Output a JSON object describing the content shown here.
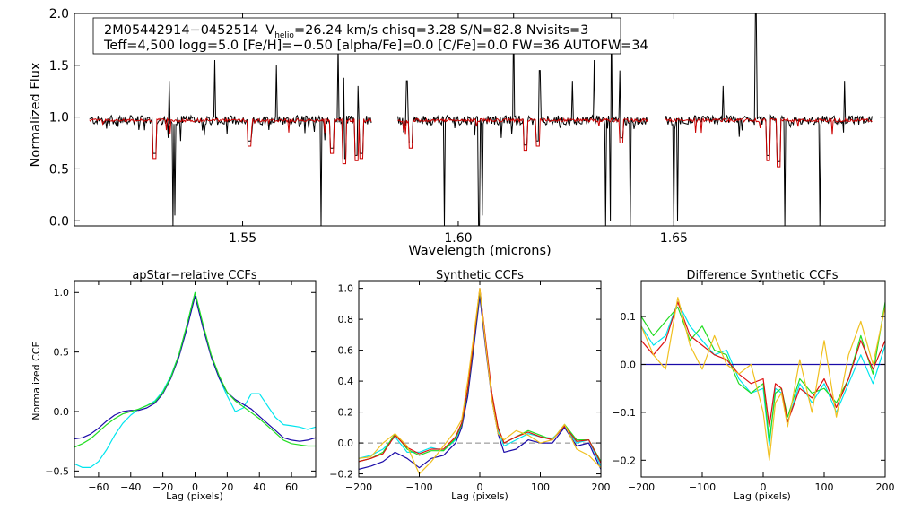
{
  "figure": {
    "star_id": "2M05442914−0452514",
    "vhelio_label": "V",
    "vhelio_sub": "helio",
    "info_line1_rest": "=26.24 km/s  chisq=3.28  S/N=82.8  Nvisits=3",
    "info_line2": "Teff=4,500 logg=5.0 [Fe/H]=−0.50 [alpha/Fe]=0.0 [C/Fe]=0.0 FW=36 AUTOFW=34"
  },
  "colors": {
    "observed": "#000000",
    "model": "#cc0000",
    "ccf_cyan": "#00e5ee",
    "ccf_blue": "#1a0aa8",
    "ccf_green": "#22dd22",
    "ccf_red": "#dd1111",
    "ccf_orange": "#f0c020",
    "zero_line_dashed": "#888888",
    "zero_line_blue": "#2020cc"
  },
  "chart_data": [
    {
      "id": "spectrum",
      "type": "line",
      "title": "",
      "xlabel": "Wavelength (microns)",
      "ylabel": "Normalized Flux",
      "xlim": [
        1.511,
        1.699
      ],
      "ylim": [
        -0.05,
        2.0
      ],
      "xticks": [
        "1.55",
        "1.60",
        "1.65"
      ],
      "xtick_values": [
        1.55,
        1.6,
        1.65
      ],
      "yticks": [
        "0.0",
        "0.5",
        "1.0",
        "1.5",
        "2.0"
      ],
      "ytick_values": [
        0.0,
        0.5,
        1.0,
        1.5,
        2.0
      ],
      "chips": [
        [
          1.5145,
          1.58
        ],
        [
          1.586,
          1.644
        ],
        [
          1.648,
          1.696
        ]
      ],
      "continuum": 0.97,
      "series": [
        {
          "name": "observed",
          "color_key": "observed",
          "emission_spikes": [
            [
              1.533,
              1.35
            ],
            [
              1.5435,
              1.55
            ],
            [
              1.5578,
              1.5
            ],
            [
              1.5722,
              1.7
            ],
            [
              1.5735,
              1.38
            ],
            [
              1.5768,
              1.3
            ],
            [
              1.5881,
              1.35
            ],
            [
              1.6048,
              1.35
            ],
            [
              1.6128,
              2.0
            ],
            [
              1.6189,
              1.45
            ],
            [
              1.6265,
              1.35
            ],
            [
              1.6315,
              1.55
            ],
            [
              1.6355,
              2.0
            ],
            [
              1.6375,
              1.45
            ],
            [
              1.6615,
              1.3
            ],
            [
              1.669,
              2.0
            ],
            [
              1.6895,
              1.35
            ]
          ],
          "absorption_spikes": [
            [
              1.5338,
              -0.05
            ],
            [
              1.5343,
              0.05
            ],
            [
              1.5681,
              -0.05
            ],
            [
              1.5801,
              -0.05
            ],
            [
              1.5967,
              -0.05
            ],
            [
              1.6048,
              -0.05
            ],
            [
              1.6055,
              0.05
            ],
            [
              1.6341,
              -0.05
            ],
            [
              1.6353,
              0.0
            ],
            [
              1.6399,
              -0.05
            ],
            [
              1.6499,
              -0.05
            ],
            [
              1.6509,
              0.0
            ],
            [
              1.6758,
              -0.05
            ],
            [
              1.6838,
              -0.05
            ]
          ]
        },
        {
          "name": "model",
          "color_key": "model",
          "absorption_lines": [
            [
              1.5295,
              0.6
            ],
            [
              1.5515,
              0.72
            ],
            [
              1.5708,
              0.65
            ],
            [
              1.5735,
              0.55
            ],
            [
              1.5764,
              0.58
            ],
            [
              1.5775,
              0.6
            ],
            [
              1.5889,
              0.7
            ],
            [
              1.6155,
              0.68
            ],
            [
              1.6185,
              0.72
            ],
            [
              1.6379,
              0.75
            ],
            [
              1.6719,
              0.58
            ],
            [
              1.6743,
              0.52
            ]
          ]
        }
      ]
    },
    {
      "id": "apstar_ccf",
      "type": "line",
      "title": "apStar−relative CCFs",
      "xlabel": "Lag (pixels)",
      "ylabel": "Normalized CCF",
      "xlim": [
        -75,
        75
      ],
      "ylim": [
        -0.55,
        1.1
      ],
      "xticks": [
        "−60",
        "−40",
        "−20",
        "0",
        "20",
        "40",
        "60"
      ],
      "xtick_values": [
        -60,
        -40,
        -20,
        0,
        20,
        40,
        60
      ],
      "yticks": [
        "−0.5",
        "0.0",
        "0.5",
        "1.0"
      ],
      "ytick_values": [
        -0.5,
        0.0,
        0.5,
        1.0
      ],
      "series": [
        {
          "name": "cyan",
          "color_key": "ccf_cyan",
          "x": [
            -75,
            -70,
            -65,
            -60,
            -55,
            -50,
            -45,
            -40,
            -35,
            -30,
            -25,
            -20,
            -15,
            -10,
            -5,
            0,
            5,
            10,
            15,
            20,
            25,
            30,
            35,
            40,
            45,
            50,
            55,
            60,
            65,
            70,
            75
          ],
          "y": [
            -0.44,
            -0.47,
            -0.47,
            -0.42,
            -0.32,
            -0.2,
            -0.1,
            -0.03,
            0.02,
            0.05,
            0.09,
            0.17,
            0.3,
            0.48,
            0.73,
            1.0,
            0.72,
            0.47,
            0.28,
            0.13,
            0.0,
            0.03,
            0.15,
            0.15,
            0.05,
            -0.05,
            -0.11,
            -0.12,
            -0.13,
            -0.15,
            -0.13
          ]
        },
        {
          "name": "blue",
          "color_key": "ccf_blue",
          "x": [
            -75,
            -70,
            -65,
            -60,
            -55,
            -50,
            -45,
            -40,
            -35,
            -30,
            -25,
            -20,
            -15,
            -10,
            -5,
            0,
            5,
            10,
            15,
            20,
            25,
            30,
            35,
            40,
            45,
            50,
            55,
            60,
            65,
            70,
            75
          ],
          "y": [
            -0.23,
            -0.22,
            -0.19,
            -0.14,
            -0.08,
            -0.03,
            0.0,
            0.01,
            0.01,
            0.03,
            0.07,
            0.15,
            0.28,
            0.46,
            0.7,
            0.97,
            0.7,
            0.46,
            0.28,
            0.16,
            0.1,
            0.06,
            0.02,
            -0.04,
            -0.1,
            -0.16,
            -0.22,
            -0.24,
            -0.25,
            -0.24,
            -0.22
          ]
        },
        {
          "name": "green",
          "color_key": "ccf_green",
          "x": [
            -75,
            -70,
            -65,
            -60,
            -55,
            -50,
            -45,
            -40,
            -35,
            -30,
            -25,
            -20,
            -15,
            -10,
            -5,
            0,
            5,
            10,
            15,
            20,
            25,
            30,
            35,
            40,
            45,
            50,
            55,
            60,
            65,
            70,
            75
          ],
          "y": [
            -0.3,
            -0.27,
            -0.23,
            -0.17,
            -0.11,
            -0.06,
            -0.02,
            0.0,
            0.02,
            0.05,
            0.08,
            0.16,
            0.29,
            0.48,
            0.73,
            1.0,
            0.73,
            0.48,
            0.3,
            0.16,
            0.09,
            0.04,
            -0.01,
            -0.06,
            -0.12,
            -0.18,
            -0.24,
            -0.27,
            -0.28,
            -0.29,
            -0.29
          ]
        }
      ]
    },
    {
      "id": "synthetic_ccf",
      "type": "line",
      "title": "Synthetic CCFs",
      "xlabel": "Lag (pixels)",
      "ylabel": "",
      "xlim": [
        -200,
        200
      ],
      "ylim": [
        -0.22,
        1.05
      ],
      "xticks": [
        "−200",
        "−100",
        "0",
        "100",
        "200"
      ],
      "xtick_values": [
        -200,
        -100,
        0,
        100,
        200
      ],
      "yticks": [
        "−0.2",
        "0.0",
        "0.2",
        "0.4",
        "0.6",
        "0.8",
        "1.0"
      ],
      "ytick_values": [
        -0.2,
        0.0,
        0.2,
        0.4,
        0.6,
        0.8,
        1.0
      ],
      "zero_line": "dashed",
      "series": [
        {
          "name": "cyan",
          "color_key": "ccf_cyan",
          "x": [
            -200,
            -180,
            -160,
            -140,
            -120,
            -100,
            -80,
            -60,
            -40,
            -30,
            -20,
            -10,
            0,
            10,
            20,
            30,
            40,
            60,
            80,
            100,
            120,
            140,
            160,
            180,
            200
          ],
          "y": [
            -0.1,
            -0.08,
            -0.04,
            0.04,
            -0.06,
            -0.06,
            -0.03,
            -0.05,
            0.02,
            0.12,
            0.33,
            0.65,
            0.98,
            0.62,
            0.3,
            0.08,
            -0.02,
            0.02,
            0.06,
            0.04,
            0.03,
            0.1,
            0.0,
            0.02,
            -0.15
          ]
        },
        {
          "name": "blue",
          "color_key": "ccf_blue",
          "x": [
            -200,
            -180,
            -160,
            -140,
            -120,
            -100,
            -80,
            -60,
            -40,
            -30,
            -20,
            -10,
            0,
            10,
            20,
            30,
            40,
            60,
            80,
            100,
            120,
            140,
            160,
            180,
            200
          ],
          "y": [
            -0.17,
            -0.15,
            -0.12,
            -0.06,
            -0.1,
            -0.16,
            -0.1,
            -0.08,
            0.0,
            0.1,
            0.3,
            0.62,
            0.95,
            0.6,
            0.28,
            0.06,
            -0.06,
            -0.04,
            0.02,
            0.0,
            0.0,
            0.1,
            -0.02,
            0.0,
            -0.17
          ]
        },
        {
          "name": "green",
          "color_key": "ccf_green",
          "x": [
            -200,
            -180,
            -160,
            -140,
            -120,
            -100,
            -80,
            -60,
            -40,
            -30,
            -20,
            -10,
            0,
            10,
            20,
            30,
            40,
            60,
            80,
            100,
            120,
            140,
            160,
            180,
            200
          ],
          "y": [
            -0.12,
            -0.1,
            -0.06,
            0.06,
            -0.04,
            -0.08,
            -0.05,
            -0.05,
            0.03,
            0.12,
            0.34,
            0.66,
            0.99,
            0.64,
            0.31,
            0.1,
            0.0,
            0.04,
            0.08,
            0.05,
            0.02,
            0.12,
            0.02,
            0.02,
            -0.12
          ]
        },
        {
          "name": "red",
          "color_key": "ccf_red",
          "x": [
            -200,
            -180,
            -160,
            -140,
            -120,
            -100,
            -80,
            -60,
            -40,
            -30,
            -20,
            -10,
            0,
            10,
            20,
            30,
            40,
            60,
            80,
            100,
            120,
            140,
            160,
            180,
            200
          ],
          "y": [
            -0.12,
            -0.1,
            -0.07,
            0.05,
            -0.03,
            -0.07,
            -0.04,
            -0.04,
            0.04,
            0.13,
            0.35,
            0.67,
            1.0,
            0.65,
            0.32,
            0.1,
            0.0,
            0.04,
            0.07,
            0.04,
            0.02,
            0.11,
            0.01,
            0.02,
            -0.13
          ]
        },
        {
          "name": "orange",
          "color_key": "ccf_orange",
          "x": [
            -200,
            -180,
            -160,
            -140,
            -120,
            -100,
            -80,
            -60,
            -40,
            -30,
            -20,
            -10,
            0,
            10,
            20,
            30,
            40,
            60,
            80,
            100,
            120,
            140,
            160,
            180,
            200
          ],
          "y": [
            -0.1,
            -0.09,
            0.0,
            0.06,
            -0.02,
            -0.2,
            -0.12,
            -0.02,
            0.08,
            0.15,
            0.4,
            0.7,
            1.0,
            0.62,
            0.28,
            0.06,
            0.02,
            0.08,
            0.05,
            0.0,
            0.02,
            0.12,
            -0.04,
            -0.08,
            -0.16
          ]
        }
      ]
    },
    {
      "id": "difference_ccf",
      "type": "line",
      "title": "Difference Synthetic CCFs",
      "xlabel": "Lag (pixels)",
      "ylabel": "",
      "xlim": [
        -200,
        200
      ],
      "ylim": [
        -0.235,
        0.175
      ],
      "xticks": [
        "−200",
        "−100",
        "0",
        "100",
        "200"
      ],
      "xtick_values": [
        -200,
        -100,
        0,
        100,
        200
      ],
      "yticks": [
        "−0.2",
        "−0.1",
        "0.0",
        "0.1"
      ],
      "ytick_values": [
        -0.2,
        -0.1,
        0.0,
        0.1
      ],
      "zero_line": "solid",
      "series": [
        {
          "name": "cyan",
          "color_key": "ccf_cyan",
          "x": [
            -200,
            -180,
            -160,
            -140,
            -120,
            -100,
            -80,
            -60,
            -40,
            -20,
            0,
            10,
            20,
            30,
            40,
            60,
            80,
            100,
            120,
            140,
            160,
            180,
            200
          ],
          "y": [
            0.08,
            0.04,
            0.06,
            0.13,
            0.08,
            0.05,
            0.02,
            0.03,
            -0.03,
            -0.06,
            -0.05,
            -0.17,
            -0.05,
            -0.06,
            -0.12,
            -0.04,
            -0.08,
            -0.04,
            -0.1,
            -0.04,
            0.02,
            -0.04,
            0.04
          ]
        },
        {
          "name": "blue",
          "color_key": "ccf_blue",
          "x": [
            -200,
            200
          ],
          "y": [
            0.0,
            0.0
          ]
        },
        {
          "name": "green",
          "color_key": "ccf_green",
          "x": [
            -200,
            -180,
            -160,
            -140,
            -120,
            -100,
            -80,
            -60,
            -40,
            -20,
            0,
            10,
            20,
            30,
            40,
            60,
            80,
            100,
            120,
            140,
            160,
            180,
            200
          ],
          "y": [
            0.1,
            0.06,
            0.09,
            0.12,
            0.05,
            0.08,
            0.03,
            0.02,
            -0.04,
            -0.06,
            -0.04,
            -0.16,
            -0.06,
            -0.05,
            -0.11,
            -0.03,
            -0.06,
            -0.05,
            -0.08,
            -0.03,
            0.06,
            -0.02,
            0.13
          ]
        },
        {
          "name": "red",
          "color_key": "ccf_red",
          "x": [
            -200,
            -180,
            -160,
            -140,
            -120,
            -100,
            -80,
            -60,
            -40,
            -20,
            0,
            10,
            20,
            30,
            40,
            60,
            80,
            100,
            120,
            140,
            160,
            180,
            200
          ],
          "y": [
            0.05,
            0.02,
            0.05,
            0.13,
            0.06,
            0.04,
            0.02,
            0.01,
            -0.02,
            -0.04,
            -0.03,
            -0.13,
            -0.04,
            -0.05,
            -0.12,
            -0.05,
            -0.07,
            -0.03,
            -0.09,
            -0.03,
            0.05,
            -0.01,
            0.05
          ]
        },
        {
          "name": "orange",
          "color_key": "ccf_orange",
          "x": [
            -200,
            -180,
            -160,
            -140,
            -120,
            -100,
            -80,
            -60,
            -40,
            -20,
            0,
            10,
            20,
            30,
            40,
            60,
            80,
            100,
            120,
            140,
            160,
            180,
            200
          ],
          "y": [
            0.08,
            0.02,
            -0.01,
            0.14,
            0.04,
            -0.01,
            0.06,
            0.0,
            -0.02,
            0.0,
            -0.1,
            -0.2,
            -0.08,
            -0.06,
            -0.13,
            0.01,
            -0.1,
            0.05,
            -0.11,
            0.02,
            0.09,
            0.0,
            0.12
          ]
        }
      ]
    }
  ]
}
